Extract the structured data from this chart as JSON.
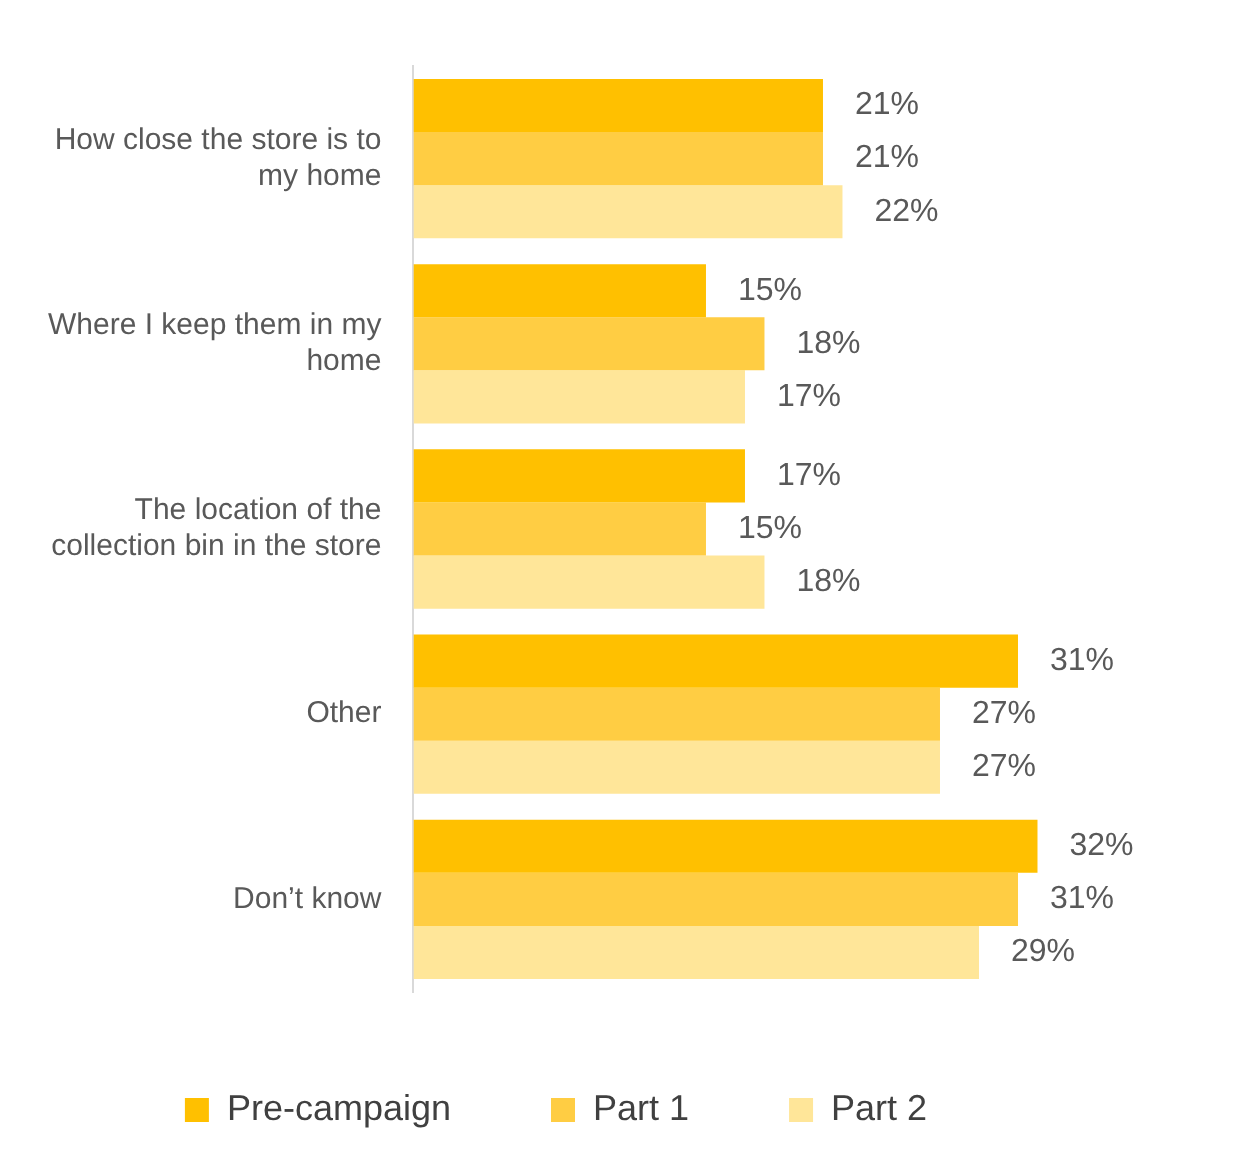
{
  "chart_data": {
    "type": "bar",
    "orientation": "horizontal",
    "categories": [
      "How close the store is to my home",
      "Where I keep them in my home",
      "The location of the collection bin in the store",
      "Other",
      "Don’t know"
    ],
    "series": [
      {
        "name": "Pre-campaign",
        "color": "#ffc000",
        "values": [
          21,
          15,
          17,
          31,
          32
        ],
        "value_labels": [
          "21%",
          "15%",
          "17%",
          "31%",
          "32%"
        ]
      },
      {
        "name": "Part 1",
        "color": "#ffcd43",
        "values": [
          21,
          18,
          15,
          27,
          31
        ],
        "value_labels": [
          "21%",
          "18%",
          "15%",
          "27%",
          "31%"
        ]
      },
      {
        "name": "Part 2",
        "color": "#ffe699",
        "values": [
          22,
          17,
          18,
          27,
          29
        ],
        "value_labels": [
          "22%",
          "17%",
          "18%",
          "27%",
          "29%"
        ]
      }
    ],
    "legend": "bottom",
    "tick_labels": "y"
  }
}
